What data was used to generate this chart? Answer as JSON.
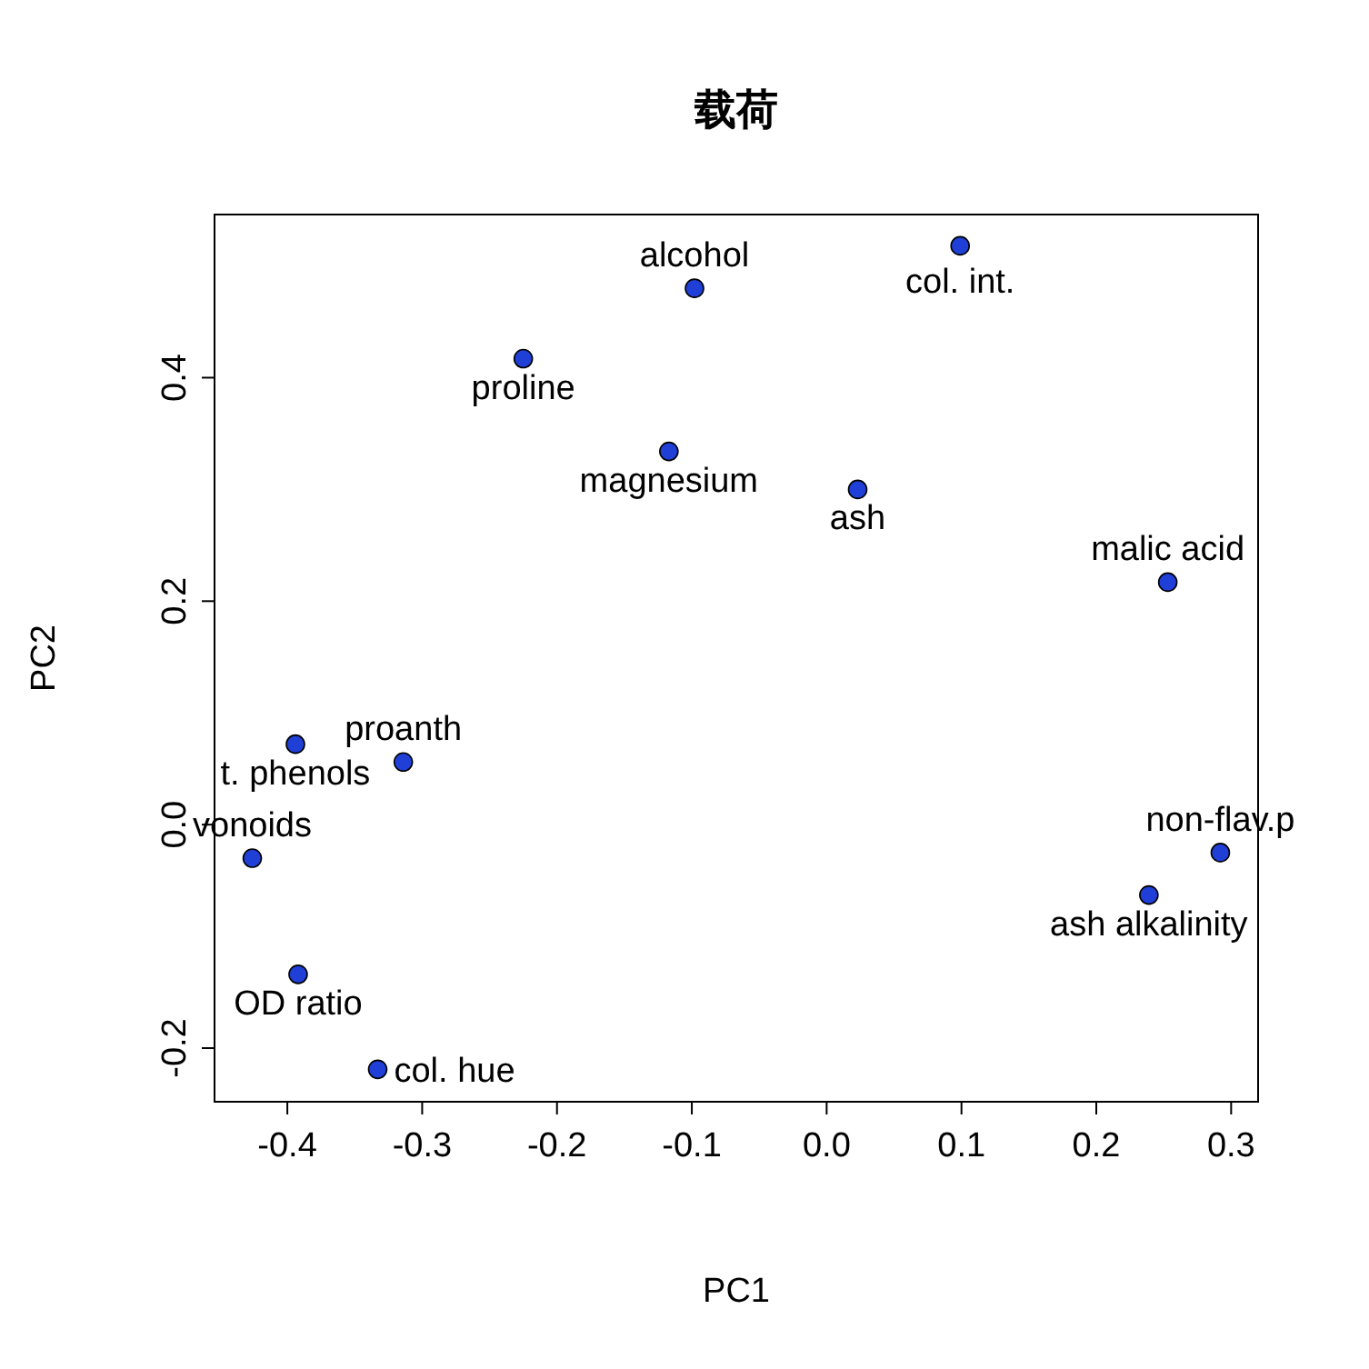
{
  "chart_data": {
    "type": "scatter",
    "title": "载荷",
    "xlabel": "PC1",
    "ylabel": "PC2",
    "xlim": [
      -0.454,
      0.32
    ],
    "ylim": [
      -0.248,
      0.546
    ],
    "xticks": [
      -0.4,
      -0.3,
      -0.2,
      -0.1,
      {
        "value": 0,
        "label": "0.0"
      },
      0.1,
      0.2,
      0.3
    ],
    "yticks": [
      -0.2,
      {
        "value": 0,
        "label": "0.0"
      },
      0.2,
      0.4
    ],
    "grid": false,
    "marker": "circle",
    "series": [
      {
        "color": "#1f3fd6",
        "x": [
          0.099,
          -0.098,
          -0.225,
          -0.117,
          0.023,
          0.253,
          -0.394,
          -0.314,
          -0.426,
          -0.392,
          -0.333,
          0.292,
          0.239
        ],
        "values": [
          0.518,
          0.48,
          0.417,
          0.334,
          0.3,
          0.217,
          0.072,
          0.056,
          -0.03,
          -0.134,
          -0.219,
          -0.025,
          -0.063
        ]
      }
    ],
    "annotations": [
      {
        "text": "col. int.",
        "x": 0.099,
        "y": 0.518
      },
      {
        "text": "alcohol",
        "x": -0.098,
        "y": 0.48
      },
      {
        "text": "proline",
        "x": -0.225,
        "y": 0.417
      },
      {
        "text": "magnesium",
        "x": -0.117,
        "y": 0.334
      },
      {
        "text": "ash",
        "x": 0.023,
        "y": 0.3
      },
      {
        "text": "malic acid",
        "x": 0.253,
        "y": 0.217
      },
      {
        "text": "t. phenols",
        "x": -0.394,
        "y": 0.072
      },
      {
        "text": "proanth",
        "x": -0.314,
        "y": 0.056
      },
      {
        "text": "vonoids",
        "x": -0.426,
        "y": -0.03
      },
      {
        "text": "OD ratio",
        "x": -0.392,
        "y": -0.134
      },
      {
        "text": "col. hue",
        "x": -0.333,
        "y": -0.219
      },
      {
        "text": "non-flav.p",
        "x": 0.292,
        "y": -0.025
      },
      {
        "text": "ash alkalinity",
        "x": 0.239,
        "y": -0.063
      }
    ]
  }
}
